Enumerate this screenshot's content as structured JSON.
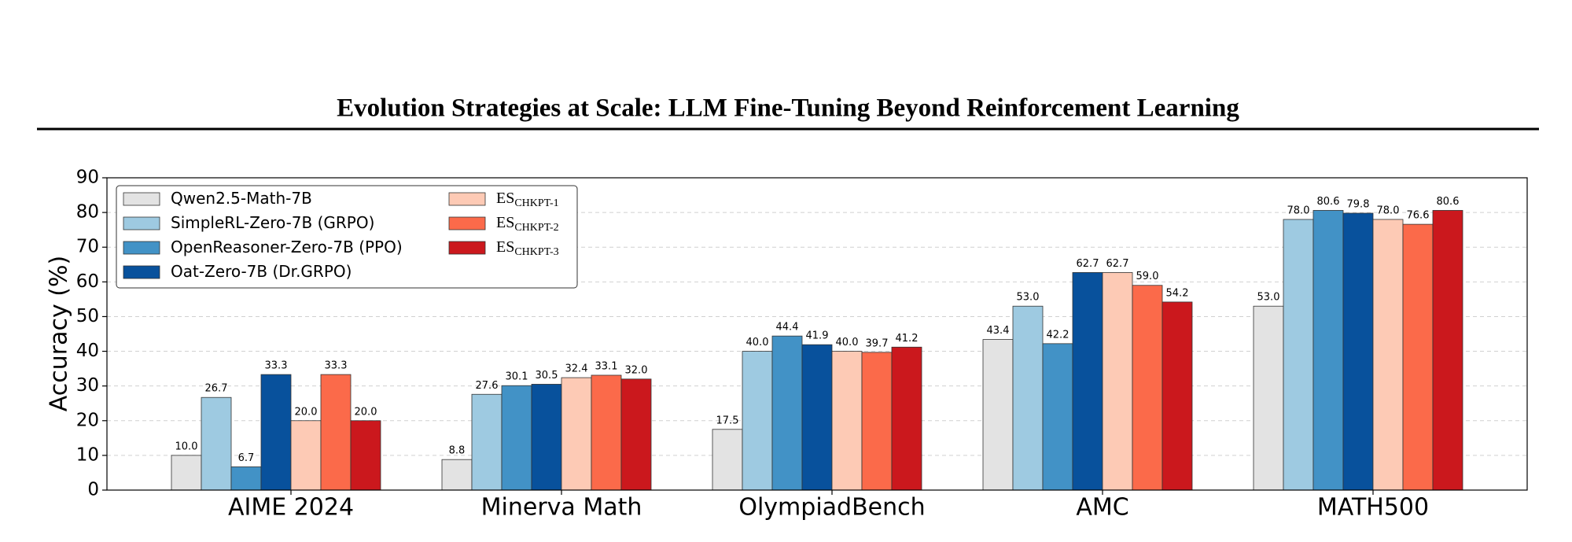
{
  "header": {
    "title": "Evolution Strategies at Scale: LLM Fine-Tuning Beyond Reinforcement Learning"
  },
  "chart_data": {
    "type": "bar",
    "ylabel": "Accuracy (%)",
    "categories": [
      "AIME 2024",
      "Minerva Math",
      "OlympiadBench",
      "AMC",
      "MATH500"
    ],
    "ylim": [
      0,
      90
    ],
    "yticks": [
      0,
      10,
      20,
      30,
      40,
      50,
      60,
      70,
      80,
      90
    ],
    "grid": true,
    "legend": "upper left",
    "series": [
      {
        "name": "Qwen2.5-Math-7B",
        "color": "#e3e3e3",
        "values": [
          10.0,
          8.8,
          17.5,
          43.4,
          53.0
        ],
        "value_labels": [
          "10.0",
          "8.8",
          "17.5",
          "43.4",
          "53.0"
        ]
      },
      {
        "name": "SimpleRL-Zero-7B (GRPO)",
        "color": "#9ecae1",
        "values": [
          26.7,
          27.6,
          40.0,
          53.0,
          78.0
        ],
        "value_labels": [
          "26.7",
          "27.6",
          "40.0",
          "53.0",
          "78.0"
        ]
      },
      {
        "name": "OpenReasoner-Zero-7B (PPO)",
        "color": "#4292c6",
        "values": [
          6.7,
          30.1,
          44.4,
          42.2,
          80.6
        ],
        "value_labels": [
          "6.7",
          "30.1",
          "44.4",
          "42.2",
          "80.6"
        ]
      },
      {
        "name": "Oat-Zero-7B (Dr.GRPO)",
        "color": "#08519c",
        "values": [
          33.3,
          30.5,
          41.9,
          62.7,
          79.8
        ],
        "value_labels": [
          "33.3",
          "30.5",
          "41.9",
          "62.7",
          "79.8"
        ]
      },
      {
        "name": "ES",
        "name_subscript": "CHKPT-1",
        "color": "#fdcab5",
        "values": [
          20.0,
          32.4,
          40.0,
          62.7,
          78.0
        ],
        "value_labels": [
          "20.0",
          "32.4",
          "40.0",
          "62.7",
          "78.0"
        ]
      },
      {
        "name": "ES",
        "name_subscript": "CHKPT-2",
        "color": "#fb6a4a",
        "values": [
          33.3,
          33.1,
          39.7,
          59.0,
          76.6
        ],
        "value_labels": [
          "33.3",
          "33.1",
          "39.7",
          "59.0",
          "76.6"
        ]
      },
      {
        "name": "ES",
        "name_subscript": "CHKPT-3",
        "color": "#cb181d",
        "values": [
          20.0,
          32.0,
          41.2,
          54.2,
          80.6
        ],
        "value_labels": [
          "20.0",
          "32.0",
          "41.2",
          "54.2",
          "80.6"
        ]
      }
    ]
  }
}
